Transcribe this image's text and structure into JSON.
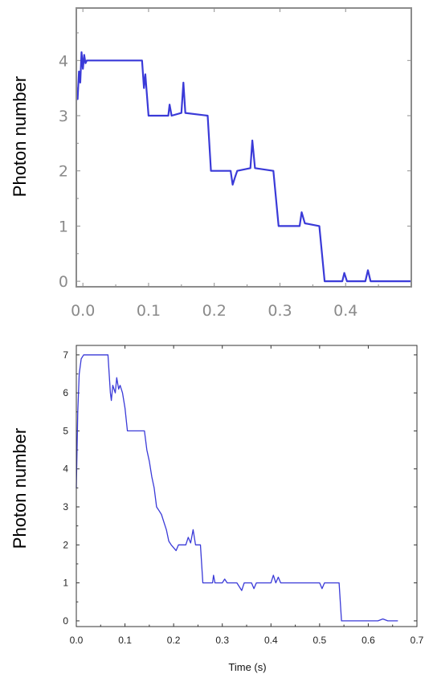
{
  "colors": {
    "line": "#3a3ad8",
    "axis_top": "#8c8c8c",
    "axis_bottom": "#333333"
  },
  "chart_data": [
    {
      "type": "line",
      "title": "",
      "xlabel": "",
      "ylabel": "Photon number",
      "xlim": [
        -0.01,
        0.5
      ],
      "ylim": [
        -0.1,
        4.95
      ],
      "x_ticks": [
        0.0,
        0.1,
        0.2,
        0.3,
        0.4
      ],
      "x_tick_labels": [
        "0.0",
        "0.1",
        "0.2",
        "0.3",
        "0.4"
      ],
      "y_ticks": [
        0,
        1,
        2,
        3,
        4
      ],
      "y_tick_labels": [
        "0",
        "1",
        "2",
        "3",
        "4"
      ],
      "grid": false,
      "series": [
        {
          "values": [
            [
              -0.008,
              3.3
            ],
            [
              -0.006,
              3.8
            ],
            [
              -0.004,
              3.6
            ],
            [
              -0.002,
              4.15
            ],
            [
              0.0,
              3.85
            ],
            [
              0.002,
              4.1
            ],
            [
              0.004,
              3.95
            ],
            [
              0.006,
              4.0
            ],
            [
              0.09,
              4.0
            ],
            [
              0.093,
              3.5
            ],
            [
              0.095,
              3.75
            ],
            [
              0.098,
              3.3
            ],
            [
              0.1,
              3.0
            ],
            [
              0.13,
              3.0
            ],
            [
              0.132,
              3.2
            ],
            [
              0.135,
              3.0
            ],
            [
              0.15,
              3.05
            ],
            [
              0.153,
              3.6
            ],
            [
              0.156,
              3.05
            ],
            [
              0.19,
              3.0
            ],
            [
              0.195,
              2.0
            ],
            [
              0.225,
              2.0
            ],
            [
              0.228,
              1.75
            ],
            [
              0.232,
              1.9
            ],
            [
              0.235,
              2.0
            ],
            [
              0.255,
              2.05
            ],
            [
              0.258,
              2.55
            ],
            [
              0.262,
              2.05
            ],
            [
              0.29,
              2.0
            ],
            [
              0.298,
              1.0
            ],
            [
              0.33,
              1.0
            ],
            [
              0.333,
              1.25
            ],
            [
              0.338,
              1.05
            ],
            [
              0.36,
              1.0
            ],
            [
              0.368,
              0.0
            ],
            [
              0.395,
              0.0
            ],
            [
              0.398,
              0.15
            ],
            [
              0.402,
              0.0
            ],
            [
              0.43,
              0.0
            ],
            [
              0.434,
              0.2
            ],
            [
              0.438,
              0.0
            ],
            [
              0.5,
              0.0
            ]
          ]
        }
      ]
    },
    {
      "type": "line",
      "title": "",
      "xlabel": "Time (s)",
      "ylabel": "Photon number",
      "xlim": [
        0.0,
        0.7
      ],
      "ylim": [
        -0.15,
        7.25
      ],
      "x_ticks": [
        0.0,
        0.1,
        0.2,
        0.3,
        0.4,
        0.5,
        0.6,
        0.7
      ],
      "x_tick_labels": [
        "0.0",
        "0.1",
        "0.2",
        "0.3",
        "0.4",
        "0.5",
        "0.6",
        "0.7"
      ],
      "y_ticks": [
        0,
        1,
        2,
        3,
        4,
        5,
        6,
        7
      ],
      "y_tick_labels": [
        "0",
        "1",
        "2",
        "3",
        "4",
        "5",
        "6",
        "7"
      ],
      "grid": false,
      "series": [
        {
          "values": [
            [
              0.0,
              3.5
            ],
            [
              0.003,
              5.5
            ],
            [
              0.006,
              6.5
            ],
            [
              0.01,
              6.9
            ],
            [
              0.015,
              7.0
            ],
            [
              0.065,
              7.0
            ],
            [
              0.07,
              6.0
            ],
            [
              0.072,
              5.8
            ],
            [
              0.075,
              6.2
            ],
            [
              0.08,
              6.0
            ],
            [
              0.083,
              6.4
            ],
            [
              0.087,
              6.1
            ],
            [
              0.09,
              6.2
            ],
            [
              0.095,
              6.0
            ],
            [
              0.1,
              5.6
            ],
            [
              0.105,
              5.0
            ],
            [
              0.14,
              5.0
            ],
            [
              0.145,
              4.5
            ],
            [
              0.15,
              4.2
            ],
            [
              0.155,
              3.8
            ],
            [
              0.16,
              3.5
            ],
            [
              0.165,
              3.0
            ],
            [
              0.17,
              2.9
            ],
            [
              0.175,
              2.8
            ],
            [
              0.18,
              2.6
            ],
            [
              0.185,
              2.4
            ],
            [
              0.19,
              2.1
            ],
            [
              0.195,
              2.0
            ],
            [
              0.205,
              1.85
            ],
            [
              0.21,
              2.0
            ],
            [
              0.225,
              2.0
            ],
            [
              0.23,
              2.2
            ],
            [
              0.235,
              2.05
            ],
            [
              0.24,
              2.4
            ],
            [
              0.245,
              2.0
            ],
            [
              0.255,
              2.0
            ],
            [
              0.26,
              1.0
            ],
            [
              0.28,
              1.0
            ],
            [
              0.282,
              1.2
            ],
            [
              0.285,
              1.0
            ],
            [
              0.3,
              1.0
            ],
            [
              0.305,
              1.1
            ],
            [
              0.31,
              1.0
            ],
            [
              0.33,
              1.0
            ],
            [
              0.34,
              0.8
            ],
            [
              0.345,
              1.0
            ],
            [
              0.36,
              1.0
            ],
            [
              0.365,
              0.85
            ],
            [
              0.37,
              1.0
            ],
            [
              0.4,
              1.0
            ],
            [
              0.405,
              1.2
            ],
            [
              0.41,
              1.0
            ],
            [
              0.415,
              1.15
            ],
            [
              0.42,
              1.0
            ],
            [
              0.5,
              1.0
            ],
            [
              0.505,
              0.85
            ],
            [
              0.51,
              1.0
            ],
            [
              0.54,
              1.0
            ],
            [
              0.545,
              0.0
            ],
            [
              0.62,
              0.0
            ],
            [
              0.63,
              0.05
            ],
            [
              0.64,
              0.0
            ],
            [
              0.66,
              0.0
            ]
          ]
        }
      ]
    }
  ]
}
